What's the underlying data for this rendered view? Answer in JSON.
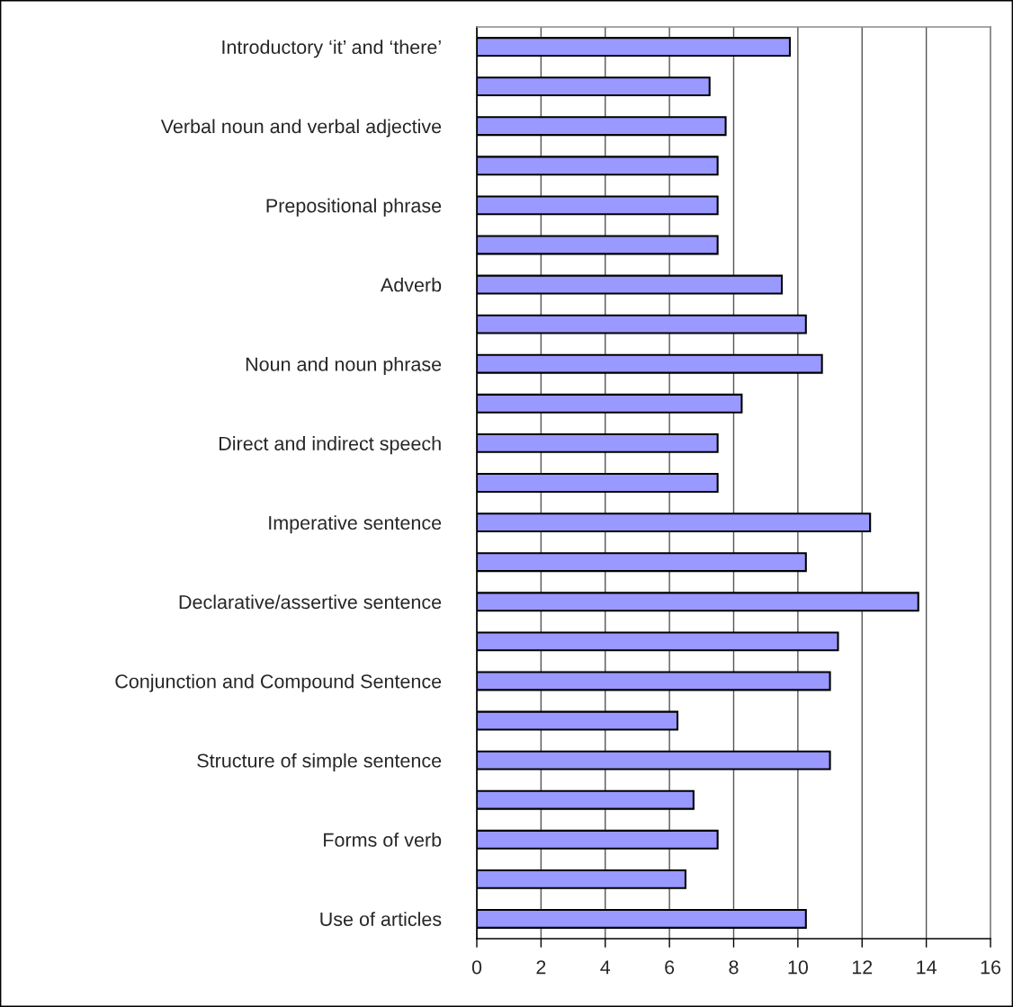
{
  "chart_data": {
    "type": "bar",
    "orientation": "horizontal",
    "categories": [
      "Introductory ‘it’ and ‘there’",
      null,
      "Verbal noun and verbal adjective",
      null,
      "Prepositional phrase",
      null,
      "Adverb",
      null,
      "Noun and noun phrase",
      null,
      "Direct and indirect speech",
      null,
      "Imperative sentence",
      null,
      "Declarative/assertive sentence",
      null,
      "Conjunction and Compound Sentence",
      null,
      "Structure of simple sentence",
      null,
      "Forms of verb",
      null,
      "Use of articles"
    ],
    "values": [
      9.75,
      7.25,
      7.75,
      7.5,
      7.5,
      7.5,
      9.5,
      10.25,
      10.75,
      8.25,
      7.5,
      7.5,
      12.25,
      10.25,
      13.75,
      11.25,
      11,
      6.25,
      11,
      6.75,
      7.5,
      6.5,
      10.25
    ],
    "color": "#9999ff",
    "xlim": [
      0,
      16
    ],
    "xticks": [
      0,
      2,
      4,
      6,
      8,
      10,
      12,
      14,
      16
    ],
    "grid": "x",
    "legend": false
  }
}
